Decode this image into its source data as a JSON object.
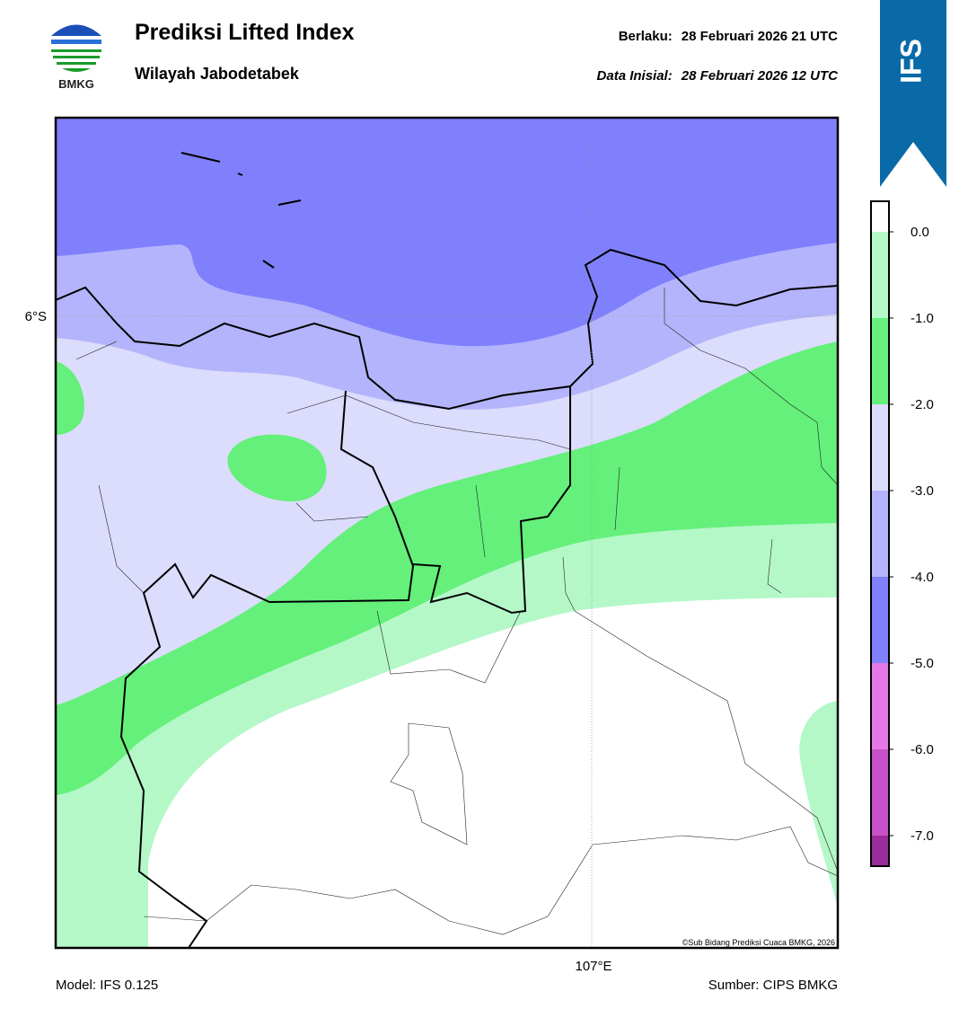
{
  "header": {
    "title": "Prediksi Lifted Index",
    "subtitle": "Wilayah Jabodetabek",
    "valid_label": "Berlaku:",
    "valid_time": "28 Februari 2026 21 UTC",
    "init_label": "Data Inisial:",
    "init_time": "28 Februari 2026 12 UTC"
  },
  "logo": {
    "text": "BMKG"
  },
  "badge": {
    "text": "IFS"
  },
  "map": {
    "lat_label": "6°S",
    "lon_label": "107°E",
    "copyright": "©Sub Bidang Prediksi Cuaca BMKG, 2026"
  },
  "colorbar": {
    "ticks": [
      "0.0",
      "-1.0",
      "-2.0",
      "-3.0",
      "-4.0",
      "-5.0",
      "-6.0",
      "-7.0"
    ],
    "colors": [
      "#ffffff",
      "#b4f8c8",
      "#64f07a",
      "#dcdcfc",
      "#b4b4fc",
      "#8080fc",
      "#e678e6",
      "#c850c8",
      "#9a2d9a"
    ]
  },
  "footer": {
    "model": "Model: IFS 0.125",
    "source": "Sumber: CIPS BMKG"
  }
}
